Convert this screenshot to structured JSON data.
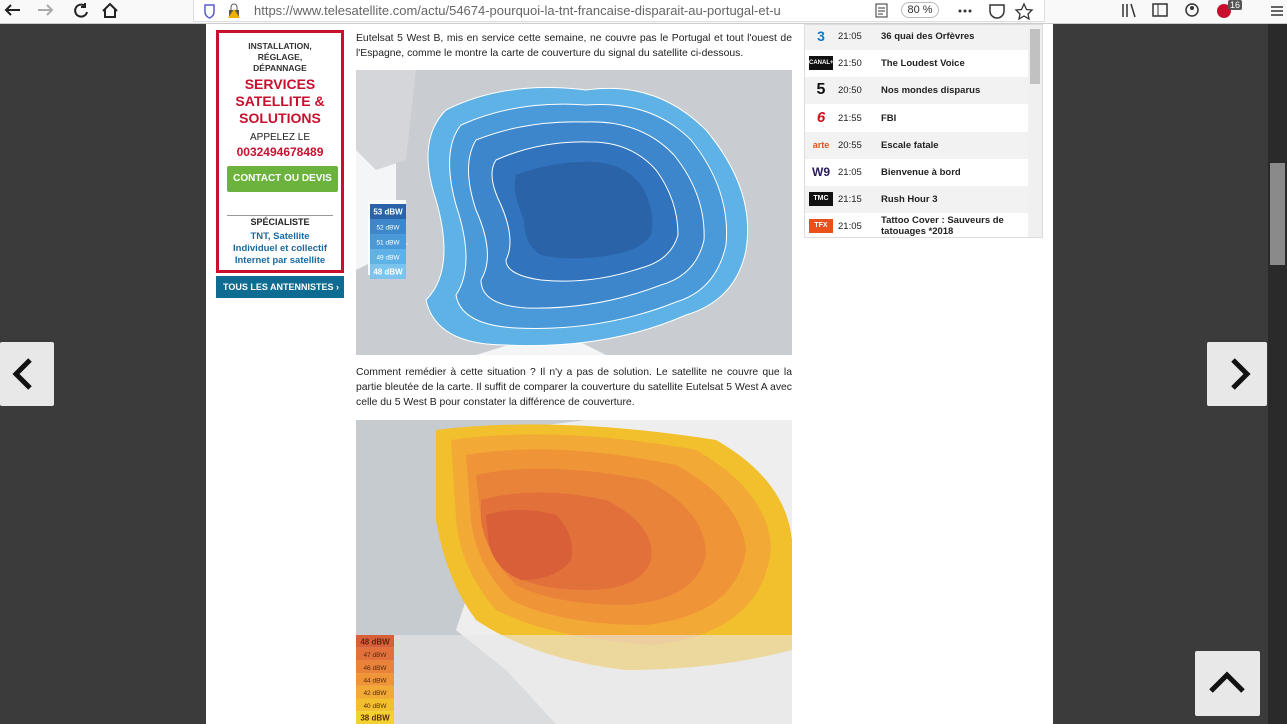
{
  "browser": {
    "url": "https://www.telesatellite.com/actu/54674-pourquoi-la-tnt-francaise-disparait-au-portugal-et-u",
    "zoom": "80 %",
    "badge": "16"
  },
  "sidebar_ad": {
    "top_line": "INSTALLATION, RÉGLAGE, DÉPANNAGE",
    "headline": "SERVICES SATELLITE & SOLUTIONS",
    "call": "APPELEZ LE",
    "phone": "0032494678489",
    "button": "CONTACT OU DEVIS",
    "specialist": "SPÉCIALISTE",
    "services": [
      "TNT, Satellite",
      "Individuel et collectif",
      "Internet par satellite"
    ]
  },
  "antennistes_button": "TOUS LES ANTENNISTES",
  "article": {
    "paragraphs": [
      "Eutelsat 5 West B, mis en service cette semaine, ne couvre pas le Portugal et tout l'ouest de l'Espagne, comme le montre la carte de couverture du signal du satellite ci-dessous.",
      "Comment remédier à cette situation ? Il n'y a pas de solution. Le satellite ne couvre que la partie bleutée de la carte. Il suffit de comparer la couverture du satellite Eutelsat 5 West A avec celle du 5 West B pour constater la différence de couverture."
    ],
    "maps": [
      {
        "legend": [
          "53 dBW",
          "52 dBW",
          "51 dBW",
          "49 dBW",
          "48 dBW"
        ]
      },
      {
        "legend": [
          "48 dBW",
          "47 dBW",
          "46 dBW",
          "44 dBW",
          "42 dBW",
          "40 dBW",
          "38 dBW"
        ]
      }
    ]
  },
  "tv_listing": [
    {
      "channel": "3",
      "time": "21:05",
      "title": "36 quai des Orfèvres"
    },
    {
      "channel": "CANAL+",
      "time": "21:50",
      "title": "The Loudest Voice"
    },
    {
      "channel": "5",
      "time": "20:50",
      "title": "Nos mondes disparus"
    },
    {
      "channel": "6",
      "time": "21:55",
      "title": "FBI"
    },
    {
      "channel": "arte",
      "time": "20:55",
      "title": "Escale fatale"
    },
    {
      "channel": "W9",
      "time": "21:05",
      "title": "Bienvenue à bord"
    },
    {
      "channel": "TMC",
      "time": "21:15",
      "title": "Rush Hour 3"
    },
    {
      "channel": "TFX",
      "time": "21:05",
      "title": "Tattoo Cover : Sauveurs de tatouages *2018"
    }
  ]
}
